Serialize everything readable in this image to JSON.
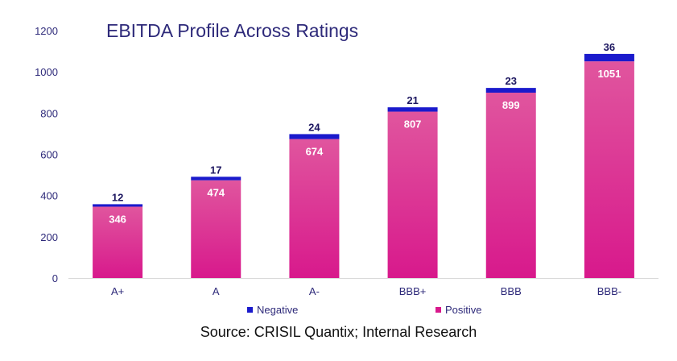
{
  "chart_data": {
    "type": "bar",
    "stacked": true,
    "title": "EBITDA Profile Across Ratings",
    "categories": [
      "A+",
      "A",
      "A-",
      "BBB+",
      "BBB",
      "BBB-"
    ],
    "series": [
      {
        "name": "Positive",
        "values": [
          346,
          474,
          674,
          807,
          899,
          1051
        ]
      },
      {
        "name": "Negative",
        "values": [
          12,
          17,
          24,
          21,
          23,
          36
        ]
      }
    ],
    "ylim": [
      0,
      1200
    ],
    "yticks": [
      0,
      200,
      400,
      600,
      800,
      1000,
      1200
    ],
    "grid": false,
    "legend_position": "bottom",
    "colors": {
      "positive_top": "#e0559e",
      "positive_bottom": "#d8198c",
      "negative": "#1a1acc",
      "title": "#2e2a7a",
      "axis_text": "#2e2a7a",
      "negative_label": "#1c1660",
      "positive_label": "#ffffff"
    }
  },
  "source": "Source: CRISIL Quantix; Internal Research"
}
